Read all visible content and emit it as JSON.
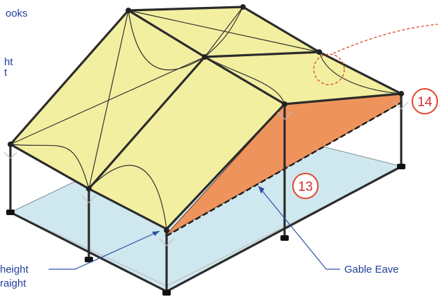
{
  "labels": {
    "hooks_fragment": "ooks",
    "height_fragment_1": "ht",
    "height_fragment_2": "t",
    "callout_14": "14",
    "callout_13": "13",
    "gable_eave": "Gable Eave",
    "eave_height_fragment": "height",
    "straight_fragment": "raight"
  },
  "colors": {
    "roof_fabric": "#f3efa0",
    "gable_fabric": "#ef935d",
    "floor_area": "#cfe7ee",
    "frame": "#2b2b2b",
    "label_text": "#1f3f9a",
    "callout": "#d62e2e"
  }
}
